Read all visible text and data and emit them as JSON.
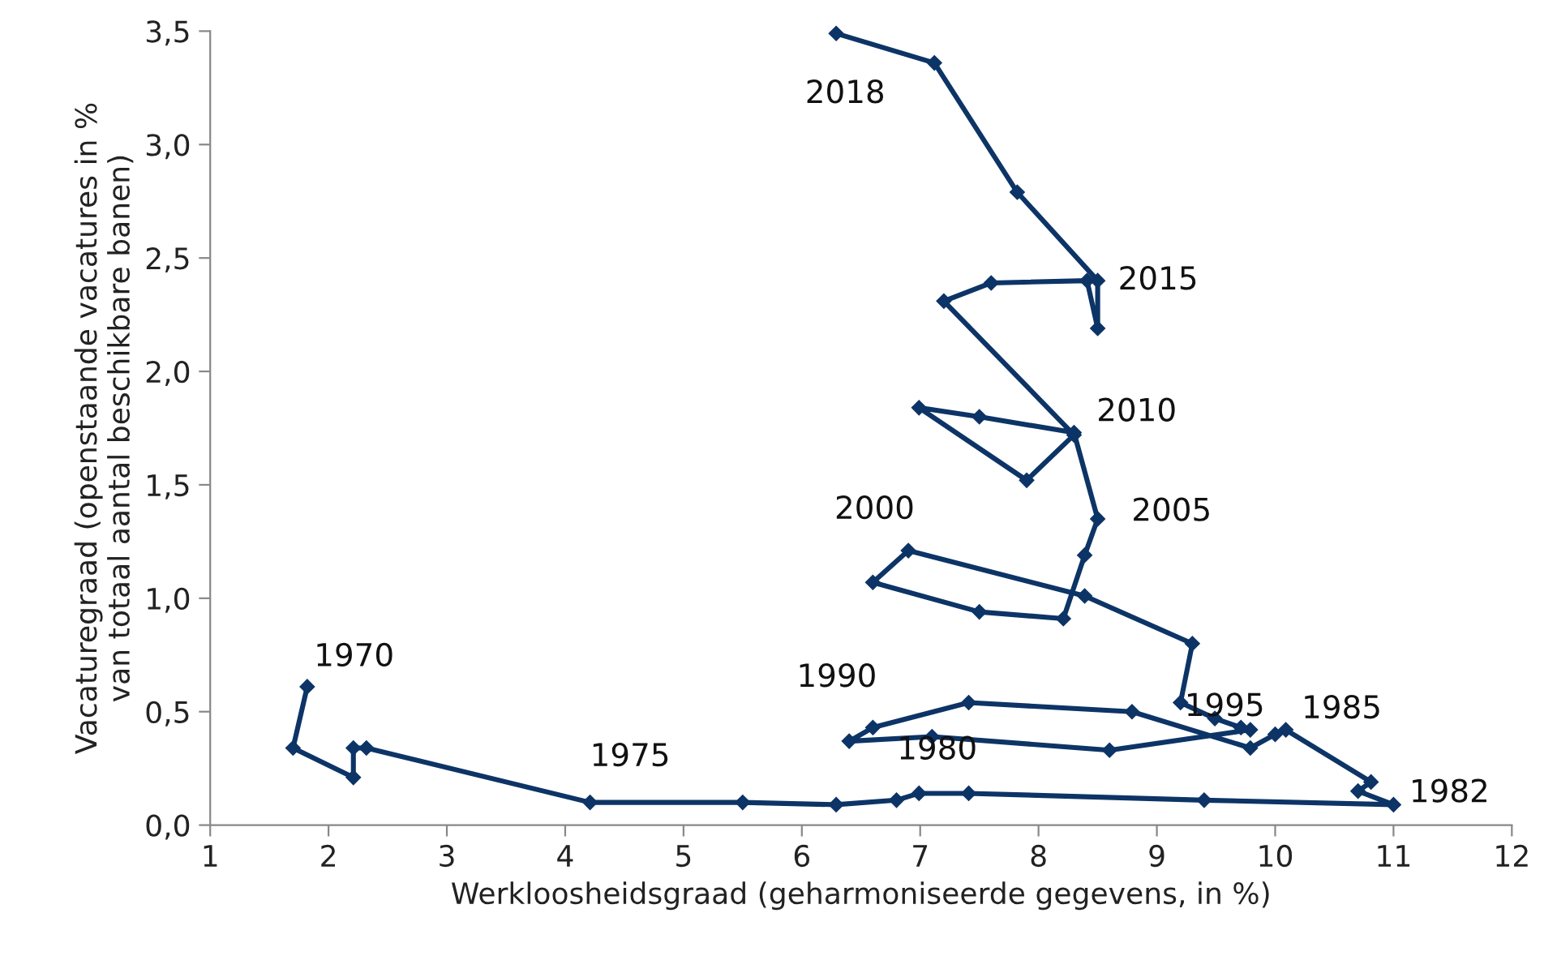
{
  "chart_data": {
    "type": "line",
    "xlabel": "Werkloosheidsgraad (geharmoniseerde gegevens, in %)",
    "ylabel": "Vacaturegraad (openstaande vacatures in %\nvan totaal aantal beschikbare banen)",
    "series": [
      {
        "color": "#0d3466",
        "x": [
          1.82,
          1.7,
          2.21,
          2.21,
          2.32,
          4.21,
          5.5,
          6.29,
          6.8,
          6.99,
          7.41,
          9.4,
          11.0,
          10.7,
          10.81,
          10.09,
          10.0,
          9.79,
          8.79,
          7.41,
          6.6,
          6.4,
          7.1,
          8.6,
          9.79,
          9.71,
          9.49,
          9.2,
          9.3,
          8.39,
          6.9,
          6.6,
          7.5,
          8.21,
          8.39,
          8.5,
          8.3,
          7.5,
          6.99,
          7.9,
          8.3,
          7.2,
          7.6,
          8.41,
          8.5,
          8.5,
          7.82,
          7.12,
          6.29
        ],
        "values": [
          0.61,
          0.34,
          0.21,
          0.34,
          0.34,
          0.1,
          0.1,
          0.09,
          0.11,
          0.14,
          0.14,
          0.11,
          0.09,
          0.15,
          0.19,
          0.42,
          0.4,
          0.34,
          0.5,
          0.54,
          0.43,
          0.37,
          0.39,
          0.33,
          0.42,
          0.43,
          0.47,
          0.54,
          0.8,
          1.01,
          1.21,
          1.07,
          0.94,
          0.91,
          1.19,
          1.35,
          1.73,
          1.8,
          1.84,
          1.52,
          1.72,
          2.31,
          2.39,
          2.4,
          2.19,
          2.4,
          2.79,
          3.36,
          3.49
        ]
      }
    ],
    "annotations": [
      {
        "text": "1970",
        "x": 1.82,
        "y": 0.61
      },
      {
        "text": "1975",
        "x": 4.21,
        "y": 0.1
      },
      {
        "text": "1980",
        "x": 7.41,
        "y": 0.14
      },
      {
        "text": "1982",
        "x": 11.0,
        "y": 0.09
      },
      {
        "text": "1985",
        "x": 10.09,
        "y": 0.42
      },
      {
        "text": "1990",
        "x": 6.6,
        "y": 0.43
      },
      {
        "text": "1995",
        "x": 9.71,
        "y": 0.43
      },
      {
        "text": "2000",
        "x": 6.9,
        "y": 1.21
      },
      {
        "text": "2005",
        "x": 8.5,
        "y": 1.35
      },
      {
        "text": "2010",
        "x": 8.3,
        "y": 1.72
      },
      {
        "text": "2015",
        "x": 8.5,
        "y": 2.4
      },
      {
        "text": "2018",
        "x": 6.29,
        "y": 3.49
      }
    ],
    "xlim": [
      1,
      12
    ],
    "xticks": [
      1,
      2,
      3,
      4,
      5,
      6,
      7,
      8,
      9,
      10,
      11,
      12
    ],
    "ylim": [
      0,
      3.5
    ],
    "yticks": [
      {
        "value": 0,
        "label": "0,0"
      },
      {
        "value": 0.5,
        "label": "0,5"
      },
      {
        "value": 1,
        "label": "1,0"
      },
      {
        "value": 1.5,
        "label": "1,5"
      },
      {
        "value": 2,
        "label": "2,0"
      },
      {
        "value": 2.5,
        "label": "2,5"
      },
      {
        "value": 3,
        "label": "3,0"
      },
      {
        "value": 3.5,
        "label": "3,5"
      }
    ],
    "grid": false,
    "legend": false,
    "marker": "diamond",
    "line_style": "solid"
  }
}
